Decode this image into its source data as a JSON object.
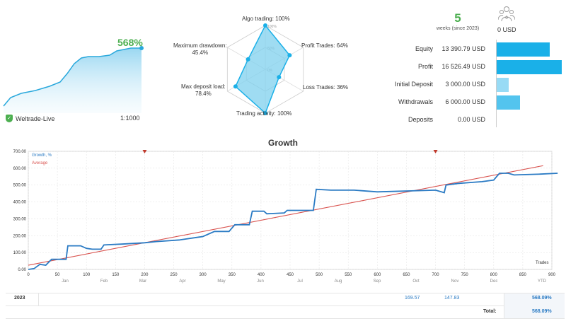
{
  "summary": {
    "growth_pct": "568%",
    "broker": "Weltrade-Live",
    "leverage": "1:1000",
    "weeks": "5",
    "weeks_sub": "weeks (since 2023)",
    "subscribers_value": "0 USD",
    "subscribers_icon_count": "0"
  },
  "radar": {
    "labels": {
      "algo": "Algo trading: 100%",
      "profit": "Profit Trades: 64%",
      "loss": "Loss Trades: 36%",
      "activity": "Trading activity: 100%",
      "deposit_load": "Max deposit load:\n78.4%",
      "drawdown": "Maximum drawdown:\n45.4%"
    },
    "values": [
      100,
      64,
      36,
      100,
      78.4,
      45.4
    ],
    "rings": [
      "0%",
      "50%",
      "100%"
    ]
  },
  "stats": [
    {
      "label": "Equity",
      "value": "13 390.79 USD",
      "ratio": 0.81
    },
    {
      "label": "Profit",
      "value": "16 526.49 USD",
      "ratio": 1.0
    },
    {
      "label": "Initial Deposit",
      "value": "3 000.00 USD",
      "ratio": 0.18
    },
    {
      "label": "Withdrawals",
      "value": "6 000.00 USD",
      "ratio": 0.36
    },
    {
      "label": "Deposits",
      "value": "0.00 USD",
      "ratio": 0
    }
  ],
  "growth": {
    "title": "Growth",
    "legend_growth": "Growth, %",
    "legend_average": "Average",
    "x_label": "Trades",
    "yticks": [
      "0.00",
      "100.00",
      "200.00",
      "300.00",
      "400.00",
      "500.00",
      "600.00",
      "700.00"
    ],
    "xticks": [
      "0",
      "50",
      "100",
      "150",
      "200",
      "250",
      "300",
      "350",
      "400",
      "450",
      "500",
      "550",
      "600",
      "650",
      "700",
      "750",
      "800",
      "850",
      "900"
    ],
    "months": [
      "Jan",
      "Feb",
      "Mar",
      "Apr",
      "May",
      "Jun",
      "Jul",
      "Aug",
      "Sep",
      "Oct",
      "Nov",
      "Dec",
      "YTD"
    ]
  },
  "table": {
    "year": "2023",
    "oct": "169.57",
    "nov": "147.83",
    "ytd": "568.09%",
    "total_label": "Total:",
    "total_value": "568.09%"
  },
  "colors": {
    "green": "#4caf50",
    "blue": "#2b7bc4",
    "bar": "#1ab0e8",
    "red": "#d9534f"
  }
}
